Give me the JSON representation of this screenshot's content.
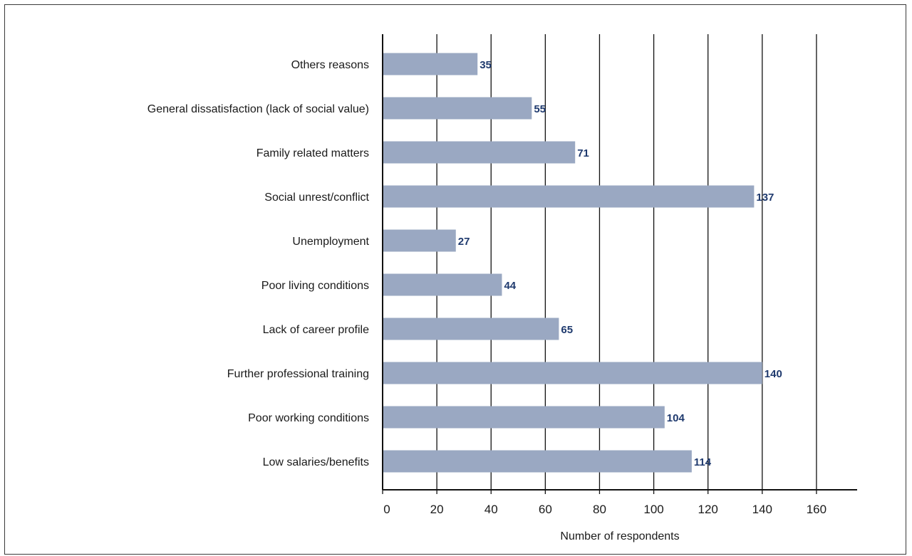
{
  "chart_data": {
    "type": "bar",
    "orientation": "horizontal",
    "title": "",
    "xlabel": "Number of respondents",
    "ylabel": "",
    "categories": [
      "Others reasons",
      "General dissatisfaction (lack of social value)",
      "Family related matters",
      "Social unrest/conflict",
      "Unemployment",
      "Poor living conditions",
      "Lack of career profile",
      "Further professional training",
      "Poor working conditions",
      "Low salaries/benefits"
    ],
    "values": [
      35,
      55,
      71,
      137,
      27,
      44,
      65,
      140,
      104,
      114
    ],
    "value_labels": [
      "35",
      "55",
      "71",
      "137",
      "27",
      "44",
      "65",
      "140",
      "104",
      "114"
    ],
    "xlim": [
      0,
      175
    ],
    "xticks": [
      0,
      20,
      40,
      60,
      80,
      100,
      120,
      140,
      160
    ],
    "xtick_labels": [
      "0",
      "20",
      "40",
      "60",
      "80",
      "100",
      "120",
      "140",
      "160"
    ],
    "grid": "vertical",
    "legend": "none",
    "colors": {
      "bar": "#9aa8c2",
      "value_label": "#1f3a6e",
      "grid": "#111111"
    }
  }
}
